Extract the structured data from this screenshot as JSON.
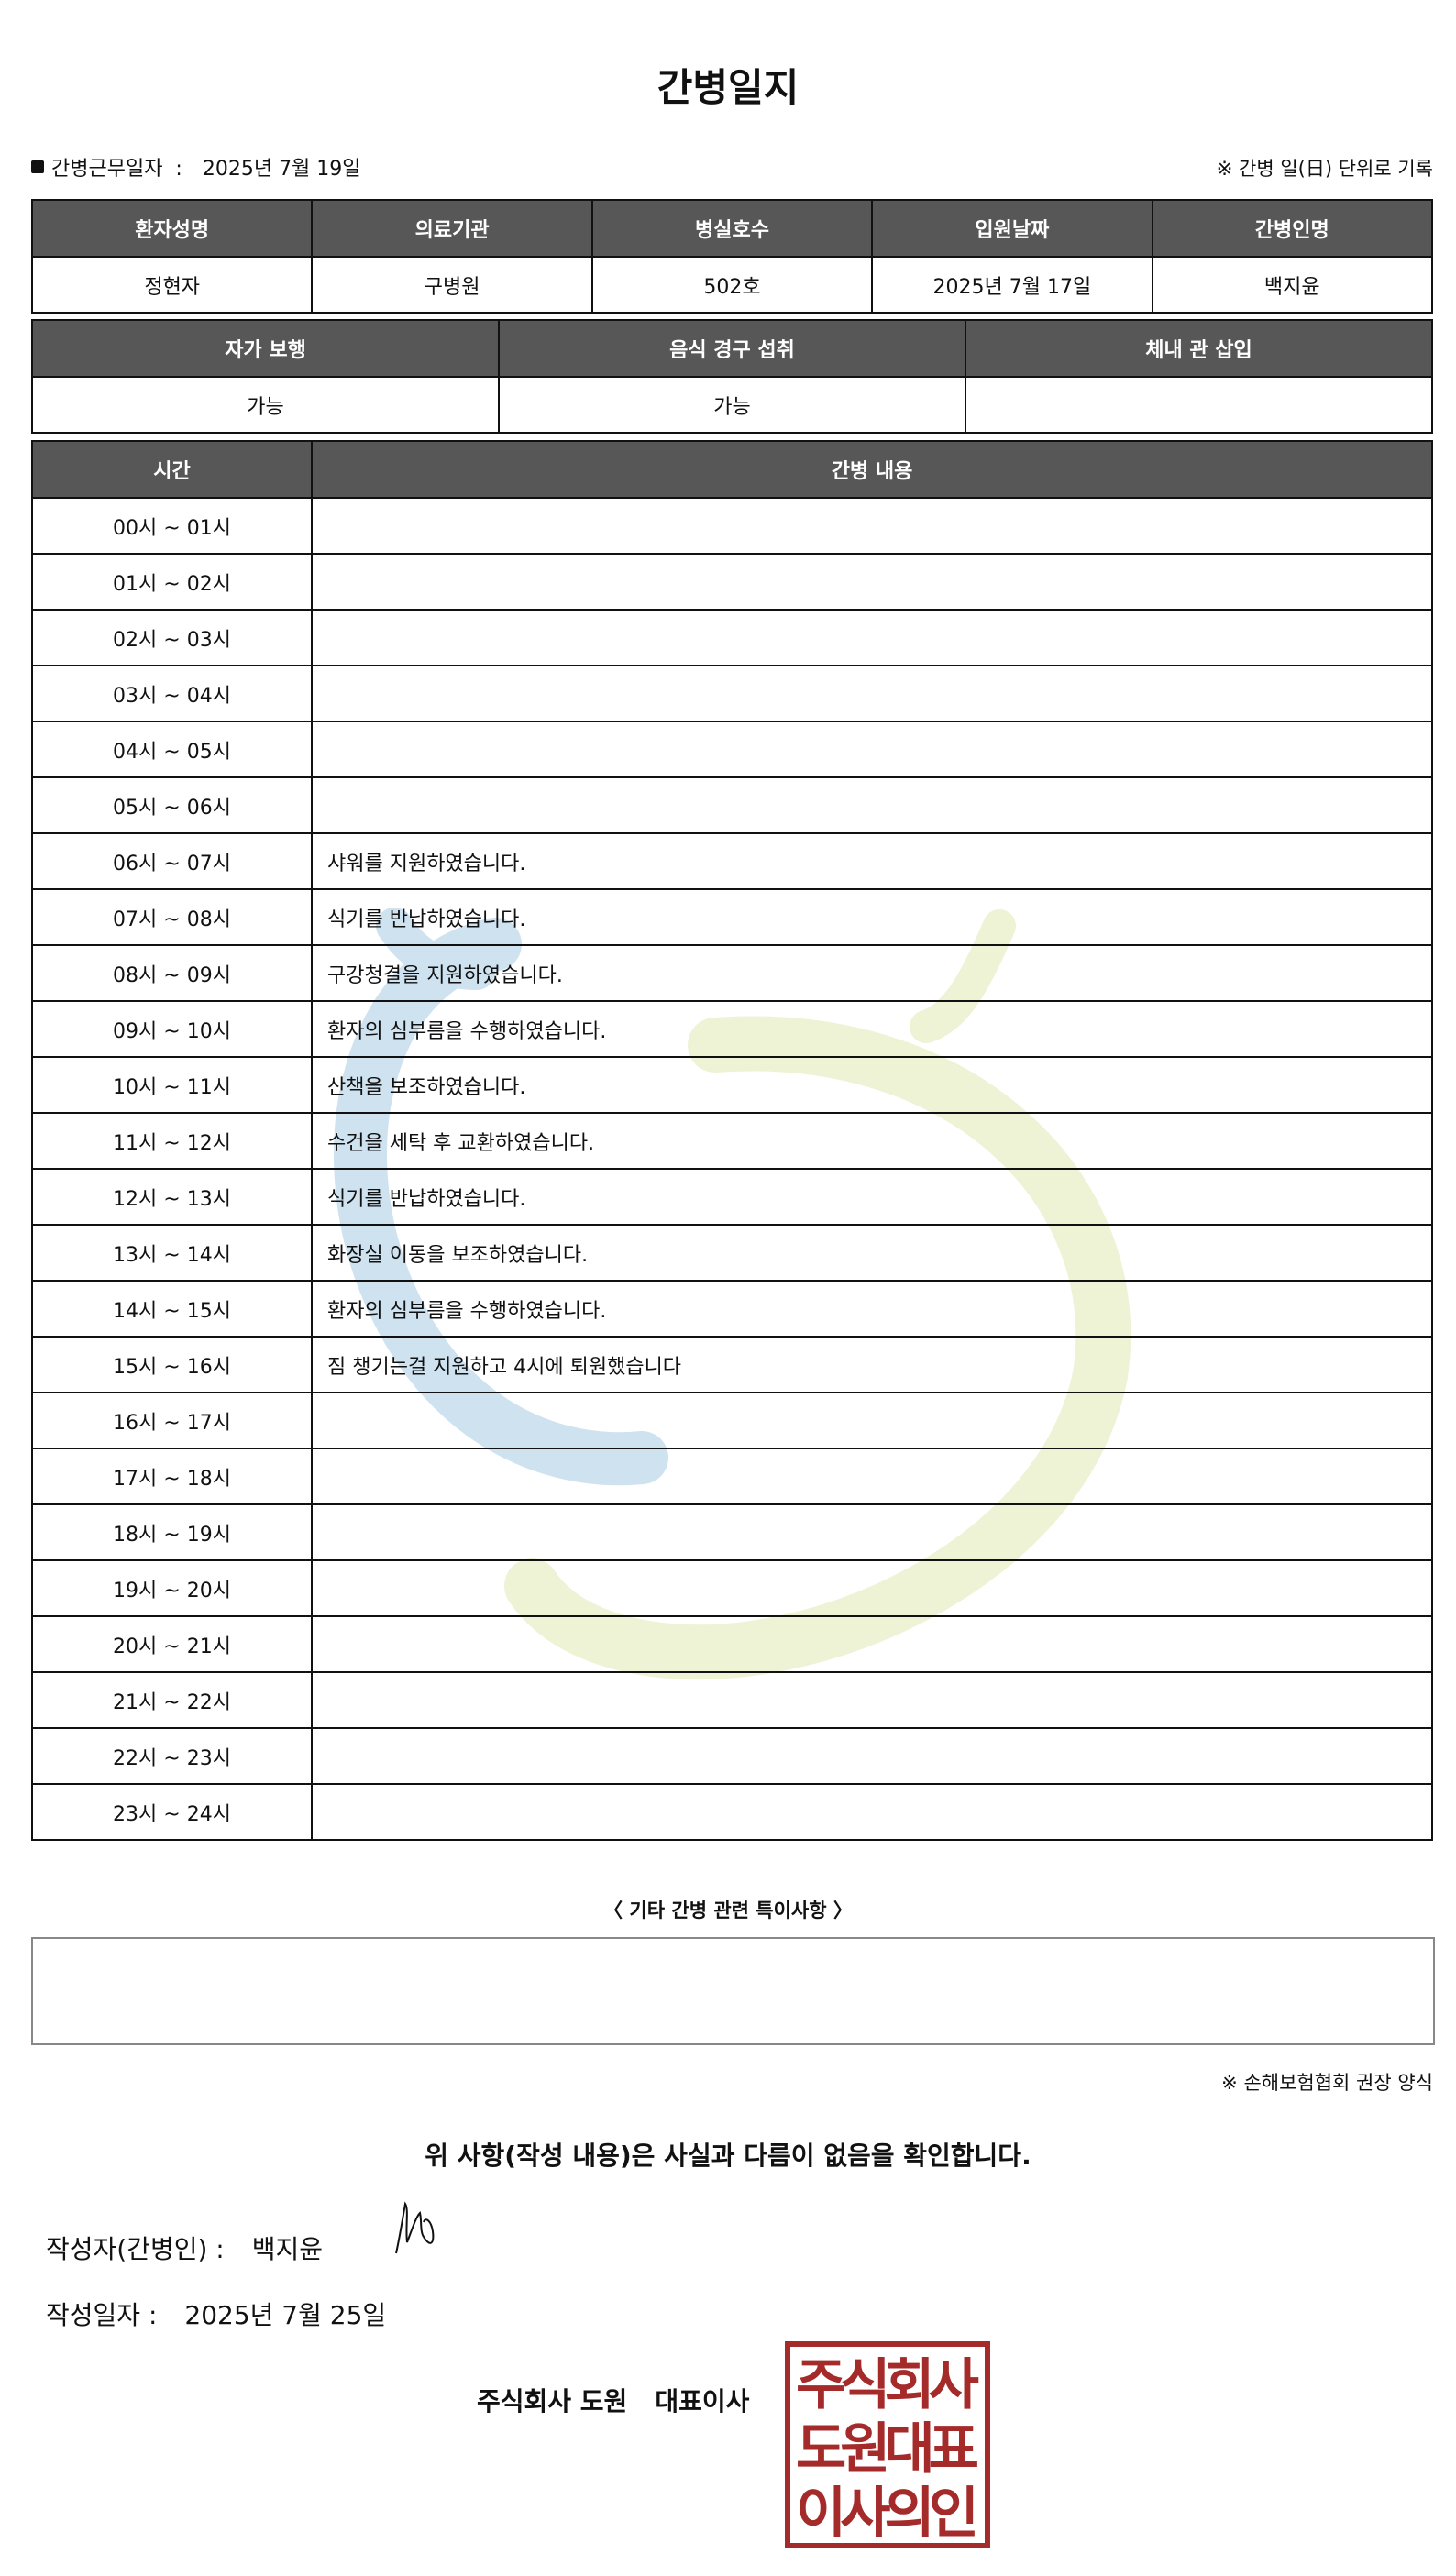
{
  "title": "간병일지",
  "info": {
    "work_date_label": "간병근무일자  :",
    "work_date": "2025년 7월 19일",
    "note": "※ 간병 일(日) 단위로 기록"
  },
  "patient_table": {
    "headers": [
      "환자성명",
      "의료기관",
      "병실호수",
      "입원날짜",
      "간병인명"
    ],
    "values": [
      "정현자",
      "구병원",
      "502호",
      "2025년 7월 17일",
      "백지윤"
    ]
  },
  "status_table": {
    "headers": [
      "자가 보행",
      "음식 경구 섭취",
      "체내 관 삽입"
    ],
    "values": [
      "가능",
      "가능",
      ""
    ]
  },
  "log_table": {
    "headers": [
      "시간",
      "간병 내용"
    ],
    "rows": [
      {
        "time": "00시 ~ 01시",
        "content": ""
      },
      {
        "time": "01시 ~ 02시",
        "content": ""
      },
      {
        "time": "02시 ~ 03시",
        "content": ""
      },
      {
        "time": "03시 ~ 04시",
        "content": ""
      },
      {
        "time": "04시 ~ 05시",
        "content": ""
      },
      {
        "time": "05시 ~ 06시",
        "content": ""
      },
      {
        "time": "06시 ~ 07시",
        "content": "샤워를 지원하였습니다."
      },
      {
        "time": "07시 ~ 08시",
        "content": "식기를 반납하였습니다."
      },
      {
        "time": "08시 ~ 09시",
        "content": "구강청결을 지원하였습니다."
      },
      {
        "time": "09시 ~ 10시",
        "content": "환자의 심부름을 수행하였습니다."
      },
      {
        "time": "10시 ~ 11시",
        "content": "산책을 보조하였습니다."
      },
      {
        "time": "11시 ~ 12시",
        "content": "수건을 세탁 후 교환하였습니다."
      },
      {
        "time": "12시 ~ 13시",
        "content": "식기를 반납하였습니다."
      },
      {
        "time": "13시 ~ 14시",
        "content": "화장실 이동을 보조하였습니다."
      },
      {
        "time": "14시 ~ 15시",
        "content": "환자의 심부름을 수행하였습니다."
      },
      {
        "time": "15시 ~ 16시",
        "content": "짐 챙기는걸 지원하고 4시에 퇴원했습니다"
      },
      {
        "time": "16시 ~ 17시",
        "content": ""
      },
      {
        "time": "17시 ~ 18시",
        "content": ""
      },
      {
        "time": "18시 ~ 19시",
        "content": ""
      },
      {
        "time": "19시 ~ 20시",
        "content": ""
      },
      {
        "time": "20시 ~ 21시",
        "content": ""
      },
      {
        "time": "21시 ~ 22시",
        "content": ""
      },
      {
        "time": "22시 ~ 23시",
        "content": ""
      },
      {
        "time": "23시 ~ 24시",
        "content": ""
      }
    ]
  },
  "notes": {
    "title": "〈 기타 간병 관련 특이사항 〉",
    "content": ""
  },
  "form_note": "※ 손해보험협회 권장 양식",
  "confirmation": "위 사항(작성 내용)은 사실과 다름이 없음을 확인합니다.",
  "author": {
    "label": "작성자(간병인) :",
    "name": "백지윤"
  },
  "written_date": {
    "label": "작성일자 :",
    "value": "2025년 7월 25일"
  },
  "company": {
    "name": "주식회사 도원",
    "title": "대표이사"
  },
  "stamp": {
    "lines": [
      "주식회사",
      "도원대표",
      "이사의인"
    ],
    "color": "#a52a2a"
  },
  "colors": {
    "header_bg": "#575757",
    "watermark_blue": "#cfe2f0",
    "watermark_green": "#eef3d6"
  }
}
